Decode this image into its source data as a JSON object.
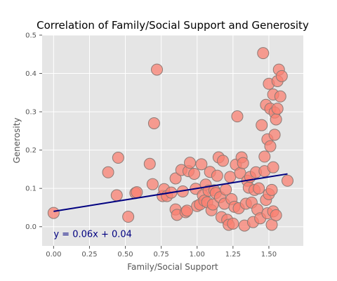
{
  "chart_data": {
    "type": "scatter",
    "title": "Correlation of Family/Social Support and Generosity",
    "xlabel": "Family/Social Support",
    "ylabel": "Generosity",
    "xlim": [
      -0.08,
      1.74
    ],
    "ylim": [
      -0.05,
      0.5
    ],
    "xticks": [
      "0.00",
      "0.25",
      "0.50",
      "0.75",
      "1.00",
      "1.25",
      "1.50"
    ],
    "yticks": [
      "0.0",
      "0.1",
      "0.2",
      "0.3",
      "0.4",
      "0.5"
    ],
    "grid": true,
    "colors": {
      "plot_bg": "#e5e5e5",
      "grid": "#ffffff",
      "marker_fill": "#fa8072",
      "marker_edge": "#8c7b76",
      "fit_line": "#000080"
    },
    "regression": {
      "slope": 0.06,
      "intercept": 0.04,
      "label": "y = 0.06x + 0.04"
    },
    "points": [
      {
        "x": 0.0,
        "y": 0.036
      },
      {
        "x": 0.38,
        "y": 0.142
      },
      {
        "x": 0.44,
        "y": 0.082
      },
      {
        "x": 0.45,
        "y": 0.18
      },
      {
        "x": 0.52,
        "y": 0.026
      },
      {
        "x": 0.57,
        "y": 0.088
      },
      {
        "x": 0.58,
        "y": 0.09
      },
      {
        "x": 0.67,
        "y": 0.164
      },
      {
        "x": 0.69,
        "y": 0.111
      },
      {
        "x": 0.7,
        "y": 0.27
      },
      {
        "x": 0.72,
        "y": 0.41
      },
      {
        "x": 0.76,
        "y": 0.08
      },
      {
        "x": 0.77,
        "y": 0.098
      },
      {
        "x": 0.79,
        "y": 0.08
      },
      {
        "x": 0.82,
        "y": 0.089
      },
      {
        "x": 0.85,
        "y": 0.126
      },
      {
        "x": 0.85,
        "y": 0.045
      },
      {
        "x": 0.86,
        "y": 0.031
      },
      {
        "x": 0.89,
        "y": 0.148
      },
      {
        "x": 0.9,
        "y": 0.092
      },
      {
        "x": 0.92,
        "y": 0.038
      },
      {
        "x": 0.93,
        "y": 0.042
      },
      {
        "x": 0.94,
        "y": 0.145
      },
      {
        "x": 0.95,
        "y": 0.167
      },
      {
        "x": 0.98,
        "y": 0.138
      },
      {
        "x": 0.99,
        "y": 0.099
      },
      {
        "x": 1.0,
        "y": 0.054
      },
      {
        "x": 1.02,
        "y": 0.058
      },
      {
        "x": 1.03,
        "y": 0.163
      },
      {
        "x": 1.04,
        "y": 0.082
      },
      {
        "x": 1.05,
        "y": 0.068
      },
      {
        "x": 1.06,
        "y": 0.11
      },
      {
        "x": 1.07,
        "y": 0.064
      },
      {
        "x": 1.08,
        "y": 0.094
      },
      {
        "x": 1.09,
        "y": 0.143
      },
      {
        "x": 1.1,
        "y": 0.043
      },
      {
        "x": 1.11,
        "y": 0.058
      },
      {
        "x": 1.12,
        "y": 0.095
      },
      {
        "x": 1.13,
        "y": 0.088
      },
      {
        "x": 1.14,
        "y": 0.133
      },
      {
        "x": 1.15,
        "y": 0.181
      },
      {
        "x": 1.16,
        "y": 0.077
      },
      {
        "x": 1.17,
        "y": 0.025
      },
      {
        "x": 1.18,
        "y": 0.172
      },
      {
        "x": 1.19,
        "y": 0.06
      },
      {
        "x": 1.2,
        "y": 0.097
      },
      {
        "x": 1.21,
        "y": 0.018
      },
      {
        "x": 1.22,
        "y": 0.005
      },
      {
        "x": 1.23,
        "y": 0.13
      },
      {
        "x": 1.24,
        "y": 0.072
      },
      {
        "x": 1.25,
        "y": 0.008
      },
      {
        "x": 1.26,
        "y": 0.052
      },
      {
        "x": 1.27,
        "y": 0.162
      },
      {
        "x": 1.28,
        "y": 0.288
      },
      {
        "x": 1.29,
        "y": 0.048
      },
      {
        "x": 1.3,
        "y": 0.14
      },
      {
        "x": 1.31,
        "y": 0.181
      },
      {
        "x": 1.32,
        "y": 0.166
      },
      {
        "x": 1.33,
        "y": 0.003
      },
      {
        "x": 1.34,
        "y": 0.06
      },
      {
        "x": 1.35,
        "y": 0.12
      },
      {
        "x": 1.36,
        "y": 0.102
      },
      {
        "x": 1.37,
        "y": 0.13
      },
      {
        "x": 1.38,
        "y": 0.063
      },
      {
        "x": 1.39,
        "y": 0.012
      },
      {
        "x": 1.4,
        "y": 0.096
      },
      {
        "x": 1.41,
        "y": 0.142
      },
      {
        "x": 1.42,
        "y": 0.045
      },
      {
        "x": 1.43,
        "y": 0.1
      },
      {
        "x": 1.44,
        "y": 0.022
      },
      {
        "x": 1.45,
        "y": 0.265
      },
      {
        "x": 1.46,
        "y": 0.453
      },
      {
        "x": 1.47,
        "y": 0.183
      },
      {
        "x": 1.47,
        "y": 0.145
      },
      {
        "x": 1.48,
        "y": 0.318
      },
      {
        "x": 1.48,
        "y": 0.07
      },
      {
        "x": 1.49,
        "y": 0.228
      },
      {
        "x": 1.49,
        "y": 0.035
      },
      {
        "x": 1.5,
        "y": 0.373
      },
      {
        "x": 1.5,
        "y": 0.085
      },
      {
        "x": 1.51,
        "y": 0.308
      },
      {
        "x": 1.51,
        "y": 0.21
      },
      {
        "x": 1.52,
        "y": 0.005
      },
      {
        "x": 1.52,
        "y": 0.096
      },
      {
        "x": 1.53,
        "y": 0.345
      },
      {
        "x": 1.53,
        "y": 0.155
      },
      {
        "x": 1.53,
        "y": 0.04
      },
      {
        "x": 1.54,
        "y": 0.298
      },
      {
        "x": 1.54,
        "y": 0.24
      },
      {
        "x": 1.55,
        "y": 0.28
      },
      {
        "x": 1.55,
        "y": 0.03
      },
      {
        "x": 1.56,
        "y": 0.38
      },
      {
        "x": 1.56,
        "y": 0.308
      },
      {
        "x": 1.57,
        "y": 0.41
      },
      {
        "x": 1.58,
        "y": 0.34
      },
      {
        "x": 1.59,
        "y": 0.393
      },
      {
        "x": 1.63,
        "y": 0.12
      }
    ]
  }
}
